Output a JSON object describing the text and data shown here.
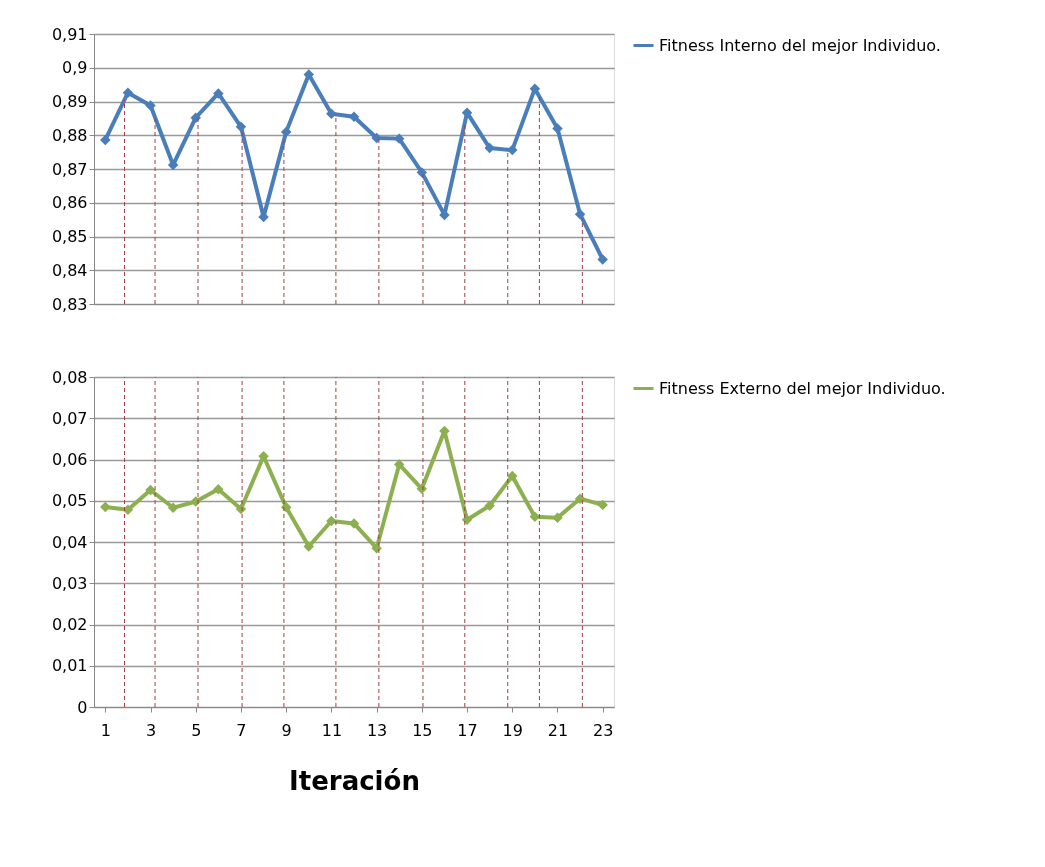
{
  "chart_data": [
    {
      "type": "line",
      "x": [
        1,
        2,
        3,
        4,
        5,
        6,
        7,
        8,
        9,
        10,
        11,
        12,
        13,
        14,
        15,
        16,
        17,
        18,
        19,
        20,
        21,
        22,
        23
      ],
      "series": [
        {
          "name": "Fitness Interno del mejor Individuo.",
          "color": "#4a7ebb",
          "values": [
            0.8786,
            0.8926,
            0.8888,
            0.8712,
            0.8852,
            0.8924,
            0.8825,
            0.8558,
            0.881,
            0.898,
            0.8864,
            0.8855,
            0.8792,
            0.879,
            0.869,
            0.8564,
            0.8867,
            0.8762,
            0.8756,
            0.8938,
            0.882,
            0.8566,
            0.8432
          ]
        }
      ],
      "xlim": [
        0.5,
        23.5
      ],
      "xticks": [
        1,
        3,
        5,
        7,
        9,
        11,
        13,
        15,
        17,
        19,
        21,
        23
      ],
      "ylim": [
        0.83,
        0.91
      ],
      "yticks": [
        {
          "value": 0.83,
          "label": "0,83"
        },
        {
          "value": 0.84,
          "label": "0,84"
        },
        {
          "value": 0.85,
          "label": "0,85"
        },
        {
          "value": 0.86,
          "label": "0,86"
        },
        {
          "value": 0.87,
          "label": "0,87"
        },
        {
          "value": 0.88,
          "label": "0,88"
        },
        {
          "value": 0.89,
          "label": "0,89"
        },
        {
          "value": 0.9,
          "label": "0,9"
        },
        {
          "value": 0.91,
          "label": "0,91"
        }
      ],
      "tick_labels": "y",
      "grid": "y",
      "marker": "diamond",
      "line_style": "solid",
      "legend": "right",
      "ref_lines": [
        {
          "axis": "x",
          "value": 1.85,
          "color": "#a04040",
          "line_style": "dashed"
        },
        {
          "axis": "x",
          "value": 3.2,
          "color": "#a04040",
          "line_style": "dashed"
        },
        {
          "axis": "x",
          "value": 5.1,
          "color": "#a04040",
          "line_style": "dashed"
        },
        {
          "axis": "x",
          "value": 7.05,
          "color": "#a04040",
          "line_style": "dashed"
        },
        {
          "axis": "x",
          "value": 8.9,
          "color": "#a04040",
          "line_style": "dashed"
        },
        {
          "axis": "x",
          "value": 11.2,
          "color": "#a04040",
          "line_style": "dashed"
        },
        {
          "axis": "x",
          "value": 13.1,
          "color": "#a04040",
          "line_style": "dashed"
        },
        {
          "axis": "x",
          "value": 15.05,
          "color": "#a04040",
          "line_style": "dashed"
        },
        {
          "axis": "x",
          "value": 16.9,
          "color": "#a04040",
          "line_style": "dashed"
        },
        {
          "axis": "x",
          "value": 18.8,
          "color": "#a04040",
          "line_style": "dashed"
        },
        {
          "axis": "x",
          "value": 20.2,
          "color": "#a04040",
          "line_style": "dashed"
        },
        {
          "axis": "x",
          "value": 22.1,
          "color": "#a04040",
          "line_style": "dashed"
        }
      ]
    },
    {
      "type": "line",
      "x": [
        1,
        2,
        3,
        4,
        5,
        6,
        7,
        8,
        9,
        10,
        11,
        12,
        13,
        14,
        15,
        16,
        17,
        18,
        19,
        20,
        21,
        22,
        23
      ],
      "xlabel": "Iteración",
      "series": [
        {
          "name": "Fitness Externo del mejor Individuo.",
          "color": "#8cb050",
          "values": [
            0.0485,
            0.0478,
            0.0526,
            0.0483,
            0.0498,
            0.0528,
            0.048,
            0.0608,
            0.0484,
            0.0389,
            0.0451,
            0.0445,
            0.0385,
            0.0588,
            0.0529,
            0.0669,
            0.0454,
            0.0488,
            0.056,
            0.0461,
            0.0459,
            0.0505,
            0.049
          ]
        }
      ],
      "xlim": [
        0.5,
        23.5
      ],
      "xticks": [
        1,
        3,
        5,
        7,
        9,
        11,
        13,
        15,
        17,
        19,
        21,
        23
      ],
      "ylim": [
        0,
        0.08
      ],
      "yticks": [
        0,
        {
          "value": 0.01,
          "label": "0,01"
        },
        {
          "value": 0.02,
          "label": "0,02"
        },
        {
          "value": 0.03,
          "label": "0,03"
        },
        {
          "value": 0.04,
          "label": "0,04"
        },
        {
          "value": 0.05,
          "label": "0,05"
        },
        {
          "value": 0.06,
          "label": "0,06"
        },
        {
          "value": 0.07,
          "label": "0,07"
        },
        {
          "value": 0.08,
          "label": "0,08"
        }
      ],
      "grid": "y",
      "marker": "diamond",
      "line_style": "solid",
      "legend": "right",
      "ref_lines": [
        {
          "axis": "x",
          "value": 1.85,
          "color": "#a04040",
          "line_style": "dashed"
        },
        {
          "axis": "x",
          "value": 3.2,
          "color": "#a04040",
          "line_style": "dashed"
        },
        {
          "axis": "x",
          "value": 5.1,
          "color": "#a04040",
          "line_style": "dashed"
        },
        {
          "axis": "x",
          "value": 7.05,
          "color": "#a04040",
          "line_style": "dashed"
        },
        {
          "axis": "x",
          "value": 8.9,
          "color": "#a04040",
          "line_style": "dashed"
        },
        {
          "axis": "x",
          "value": 11.2,
          "color": "#a04040",
          "line_style": "dashed"
        },
        {
          "axis": "x",
          "value": 13.1,
          "color": "#a04040",
          "line_style": "dashed"
        },
        {
          "axis": "x",
          "value": 15.05,
          "color": "#a04040",
          "line_style": "dashed"
        },
        {
          "axis": "x",
          "value": 16.9,
          "color": "#a04040",
          "line_style": "dashed"
        },
        {
          "axis": "x",
          "value": 18.8,
          "color": "#a04040",
          "line_style": "dashed"
        },
        {
          "axis": "x",
          "value": 20.2,
          "color": "#a04040",
          "line_style": "dashed"
        },
        {
          "axis": "x",
          "value": 22.1,
          "color": "#a04040",
          "line_style": "dashed"
        }
      ]
    }
  ]
}
